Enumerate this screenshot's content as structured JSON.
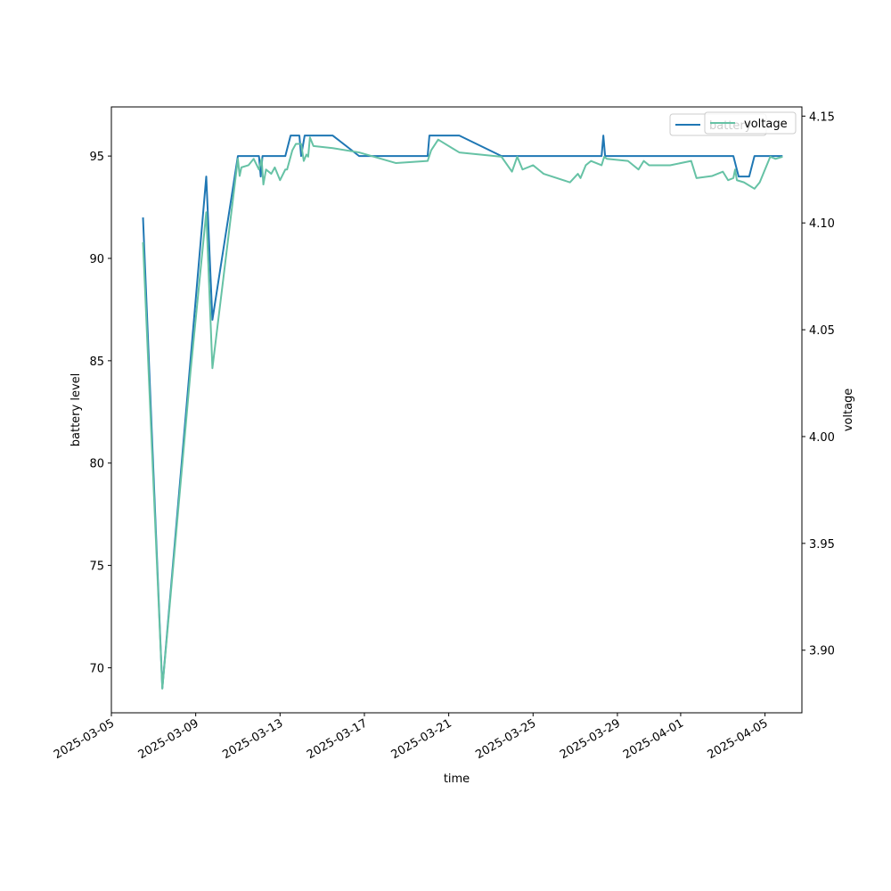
{
  "chart_data": {
    "type": "line",
    "xlabel": "time",
    "ylabel": "battery level",
    "y2label": "voltage",
    "x_ticks": [
      "2025-03-05",
      "2025-03-09",
      "2025-03-13",
      "2025-03-17",
      "2025-03-21",
      "2025-03-25",
      "2025-03-29",
      "2025-04-01",
      "2025-04-05"
    ],
    "y_ticks": [
      70,
      75,
      80,
      85,
      90,
      95
    ],
    "y2_ticks": [
      "3.90",
      "3.95",
      "4.00",
      "4.05",
      "4.10",
      "4.15"
    ],
    "ylim": [
      67.8,
      97.4
    ],
    "y2lim": [
      3.8707,
      4.1543
    ],
    "xlim": [
      "2025-03-05 00:00",
      "2025-04-06 18:00"
    ],
    "legend_position": "top-right",
    "colors": {
      "battery": "#1f77b4",
      "voltage": "#66c2a5"
    },
    "series": [
      {
        "name": "battery",
        "axis": "left",
        "points": [
          [
            "2025-03-06 12:00",
            92
          ],
          [
            "2025-03-07 10:00",
            69
          ],
          [
            "2025-03-09 12:00",
            94
          ],
          [
            "2025-03-09 19:00",
            87
          ],
          [
            "2025-03-11 00:00",
            95
          ],
          [
            "2025-03-12 00:00",
            95
          ],
          [
            "2025-03-12 02:00",
            94
          ],
          [
            "2025-03-12 04:00",
            95
          ],
          [
            "2025-03-13 06:00",
            95
          ],
          [
            "2025-03-13 12:00",
            96
          ],
          [
            "2025-03-13 22:00",
            96
          ],
          [
            "2025-03-14 00:00",
            95
          ],
          [
            "2025-03-14 04:00",
            96
          ],
          [
            "2025-03-15 12:00",
            96
          ],
          [
            "2025-03-16 18:00",
            95
          ],
          [
            "2025-03-20 00:00",
            95
          ],
          [
            "2025-03-20 02:00",
            96
          ],
          [
            "2025-03-21 12:00",
            96
          ],
          [
            "2025-03-23 12:00",
            95
          ],
          [
            "2025-03-28 06:00",
            95
          ],
          [
            "2025-03-28 08:00",
            96
          ],
          [
            "2025-03-28 10:00",
            95
          ],
          [
            "2025-04-03 12:00",
            95
          ],
          [
            "2025-04-03 18:00",
            94
          ],
          [
            "2025-04-04 06:00",
            94
          ],
          [
            "2025-04-04 12:00",
            95
          ],
          [
            "2025-04-05 12:00",
            95
          ],
          [
            "2025-04-05 20:00",
            95
          ]
        ]
      },
      {
        "name": "voltage",
        "axis": "right",
        "points": [
          [
            "2025-03-06 12:00",
            4.091
          ],
          [
            "2025-03-07 10:00",
            3.882
          ],
          [
            "2025-03-08 18:00",
            4.03
          ],
          [
            "2025-03-09 12:00",
            4.105
          ],
          [
            "2025-03-09 19:00",
            4.032
          ],
          [
            "2025-03-11 00:00",
            4.13
          ],
          [
            "2025-03-11 02:00",
            4.122
          ],
          [
            "2025-03-11 04:00",
            4.126
          ],
          [
            "2025-03-11 12:00",
            4.127
          ],
          [
            "2025-03-11 18:00",
            4.13
          ],
          [
            "2025-03-12 00:00",
            4.125
          ],
          [
            "2025-03-12 03:00",
            4.13
          ],
          [
            "2025-03-12 05:00",
            4.118
          ],
          [
            "2025-03-12 08:00",
            4.125
          ],
          [
            "2025-03-12 14:00",
            4.123
          ],
          [
            "2025-03-12 18:00",
            4.126
          ],
          [
            "2025-03-13 00:00",
            4.12
          ],
          [
            "2025-03-13 06:00",
            4.125
          ],
          [
            "2025-03-13 08:00",
            4.125
          ],
          [
            "2025-03-13 14:00",
            4.134
          ],
          [
            "2025-03-13 18:00",
            4.137
          ],
          [
            "2025-03-14 00:00",
            4.137
          ],
          [
            "2025-03-14 03:00",
            4.129
          ],
          [
            "2025-03-14 06:00",
            4.132
          ],
          [
            "2025-03-14 08:00",
            4.131
          ],
          [
            "2025-03-14 10:00",
            4.14
          ],
          [
            "2025-03-14 14:00",
            4.136
          ],
          [
            "2025-03-15 12:00",
            4.135
          ],
          [
            "2025-03-16 18:00",
            4.133
          ],
          [
            "2025-03-18 12:00",
            4.128
          ],
          [
            "2025-03-20 00:00",
            4.129
          ],
          [
            "2025-03-20 04:00",
            4.134
          ],
          [
            "2025-03-20 12:00",
            4.139
          ],
          [
            "2025-03-21 12:00",
            4.133
          ],
          [
            "2025-03-23 12:00",
            4.131
          ],
          [
            "2025-03-24 00:00",
            4.124
          ],
          [
            "2025-03-24 06:00",
            4.131
          ],
          [
            "2025-03-24 12:00",
            4.125
          ],
          [
            "2025-03-25 00:00",
            4.127
          ],
          [
            "2025-03-25 06:00",
            4.125
          ],
          [
            "2025-03-25 12:00",
            4.123
          ],
          [
            "2025-03-26 18:00",
            4.119
          ],
          [
            "2025-03-27 03:00",
            4.123
          ],
          [
            "2025-03-27 06:00",
            4.121
          ],
          [
            "2025-03-27 12:00",
            4.127
          ],
          [
            "2025-03-27 18:00",
            4.129
          ],
          [
            "2025-03-28 06:00",
            4.127
          ],
          [
            "2025-03-28 09:00",
            4.131
          ],
          [
            "2025-03-28 12:00",
            4.13
          ],
          [
            "2025-03-29 12:00",
            4.129
          ],
          [
            "2025-03-30 00:00",
            4.125
          ],
          [
            "2025-03-30 06:00",
            4.129
          ],
          [
            "2025-03-30 12:00",
            4.127
          ],
          [
            "2025-03-31 12:00",
            4.127
          ],
          [
            "2025-04-01 12:00",
            4.129
          ],
          [
            "2025-04-01 18:00",
            4.121
          ],
          [
            "2025-04-02 12:00",
            4.122
          ],
          [
            "2025-04-03 00:00",
            4.124
          ],
          [
            "2025-04-03 06:00",
            4.12
          ],
          [
            "2025-04-03 12:00",
            4.121
          ],
          [
            "2025-04-03 14:00",
            4.125
          ],
          [
            "2025-04-03 16:00",
            4.12
          ],
          [
            "2025-04-04 00:00",
            4.119
          ],
          [
            "2025-04-04 12:00",
            4.116
          ],
          [
            "2025-04-04 18:00",
            4.119
          ],
          [
            "2025-04-05 06:00",
            4.131
          ],
          [
            "2025-04-05 12:00",
            4.13
          ],
          [
            "2025-04-05 20:00",
            4.131
          ]
        ]
      }
    ]
  }
}
